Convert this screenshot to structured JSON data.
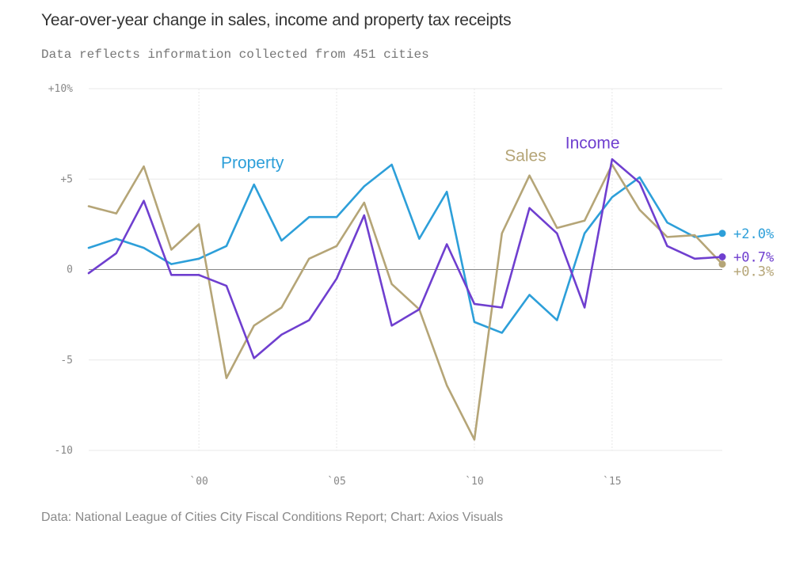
{
  "title": "Year-over-year change in sales, income and property tax receipts",
  "subtitle": "Data reflects information collected from 451 cities",
  "source": "Data: National League of Cities City Fiscal Conditions Report; Chart: Axios Visuals",
  "chart_data": {
    "type": "line",
    "x": [
      1996,
      1997,
      1998,
      1999,
      2000,
      2001,
      2002,
      2003,
      2004,
      2005,
      2006,
      2007,
      2008,
      2009,
      2010,
      2011,
      2012,
      2013,
      2014,
      2015,
      2016,
      2017,
      2018,
      2019
    ],
    "ylim": [
      -10,
      10
    ],
    "xlim": [
      1996,
      2019
    ],
    "yticks": [
      {
        "value": 10,
        "label": "+10%"
      },
      {
        "value": 5,
        "label": "+5"
      },
      {
        "value": 0,
        "label": "0"
      },
      {
        "value": -5,
        "label": "-5"
      },
      {
        "value": -10,
        "label": "-10"
      }
    ],
    "xticks": [
      {
        "value": 2000,
        "label": "`00"
      },
      {
        "value": 2005,
        "label": "`05"
      },
      {
        "value": 2010,
        "label": "`10"
      },
      {
        "value": 2015,
        "label": "`15"
      }
    ],
    "grid": true,
    "series": [
      {
        "name": "Property",
        "color": "#2d9fd9",
        "values": [
          1.2,
          1.7,
          1.2,
          0.3,
          0.6,
          1.3,
          4.7,
          1.6,
          2.9,
          2.9,
          4.6,
          5.8,
          1.7,
          4.3,
          -2.9,
          -3.5,
          -1.4,
          -2.8,
          2.0,
          4.0,
          5.1,
          2.6,
          1.8,
          2.0
        ],
        "label_at": [
          2000.8,
          5.6
        ],
        "end_label": "+2.0%"
      },
      {
        "name": "Sales",
        "color": "#b5a577",
        "values": [
          3.5,
          3.1,
          5.7,
          1.1,
          2.5,
          -6.0,
          -3.1,
          -2.1,
          0.6,
          1.3,
          3.7,
          -0.8,
          -2.2,
          -6.4,
          -9.4,
          2.0,
          5.2,
          2.3,
          2.7,
          5.8,
          3.3,
          1.8,
          1.9,
          0.3
        ],
        "label_at": [
          2011.1,
          6.0
        ],
        "end_label": "+0.3%"
      },
      {
        "name": "Income",
        "color": "#6f3fcf",
        "values": [
          -0.2,
          0.9,
          3.8,
          -0.3,
          -0.3,
          -0.9,
          -4.9,
          -3.6,
          -2.8,
          -0.5,
          3.0,
          -3.1,
          -2.2,
          1.4,
          -1.9,
          -2.1,
          3.4,
          2.0,
          -2.1,
          6.1,
          4.8,
          1.3,
          0.6,
          0.7
        ],
        "label_at": [
          2013.3,
          6.7
        ],
        "end_label": "+0.7%"
      }
    ]
  }
}
